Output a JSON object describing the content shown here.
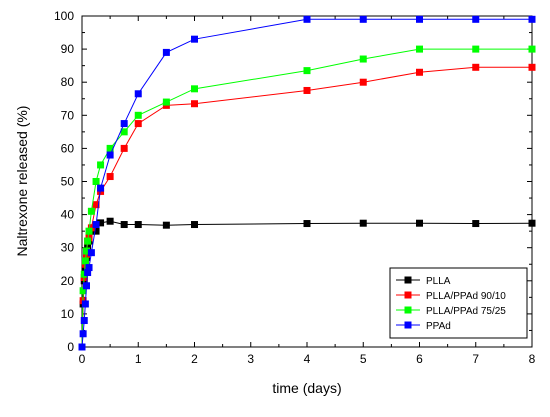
{
  "chart_data": {
    "type": "line",
    "xlabel": "time (days)",
    "ylabel": "Naltrexone released (%)",
    "xlim": [
      0,
      8
    ],
    "ylim": [
      0,
      100
    ],
    "xticks": [
      0,
      1,
      2,
      3,
      4,
      5,
      6,
      7,
      8
    ],
    "yticks": [
      0,
      10,
      20,
      30,
      40,
      50,
      60,
      70,
      80,
      90,
      100
    ],
    "grid": false,
    "legend_position": "bottom-right",
    "series": [
      {
        "name": "PLLA",
        "color": "#000000",
        "marker": "square",
        "x": [
          0,
          0.02,
          0.04,
          0.06,
          0.08,
          0.1,
          0.125,
          0.167,
          0.2,
          0.25,
          0.33,
          0.5,
          0.75,
          1,
          1.5,
          2,
          4,
          5,
          6,
          7,
          8
        ],
        "y": [
          0,
          13,
          20,
          24,
          27,
          30,
          32,
          35,
          36,
          35,
          37.5,
          38,
          37,
          37,
          36.8,
          37,
          37.3,
          37.4,
          37.4,
          37.3,
          37.4
        ]
      },
      {
        "name": "PLLA/PPAd 90/10",
        "color": "#ff0000",
        "marker": "square",
        "x": [
          0,
          0.02,
          0.04,
          0.06,
          0.08,
          0.1,
          0.125,
          0.167,
          0.25,
          0.33,
          0.5,
          0.75,
          1,
          1.5,
          2,
          4,
          5,
          6,
          7,
          8
        ],
        "y": [
          0,
          14,
          21,
          25,
          28,
          32,
          33,
          36,
          43,
          47,
          51.5,
          60,
          67.5,
          73,
          73.5,
          77.5,
          80,
          83,
          84.5,
          84.5
        ]
      },
      {
        "name": "PLLA/PPAd 75/25",
        "color": "#00ff00",
        "marker": "square",
        "x": [
          0,
          0.02,
          0.04,
          0.06,
          0.08,
          0.1,
          0.125,
          0.167,
          0.25,
          0.33,
          0.5,
          0.75,
          1,
          1.5,
          2,
          4,
          5,
          6,
          7,
          8
        ],
        "y": [
          0,
          17,
          22,
          26,
          29,
          32,
          35,
          41,
          50,
          55,
          60,
          65,
          70,
          74,
          78,
          83.5,
          87,
          90,
          90,
          90
        ]
      },
      {
        "name": "PPAd",
        "color": "#0000ff",
        "marker": "square",
        "x": [
          0,
          0.02,
          0.04,
          0.06,
          0.08,
          0.1,
          0.125,
          0.167,
          0.25,
          0.33,
          0.5,
          0.75,
          1,
          1.5,
          2,
          4,
          5,
          6,
          7,
          8
        ],
        "y": [
          0,
          4,
          8,
          13,
          18.5,
          22.5,
          24,
          28.5,
          37,
          48,
          58,
          67.5,
          76.5,
          89,
          93,
          99,
          99,
          99,
          99,
          99
        ]
      }
    ]
  }
}
